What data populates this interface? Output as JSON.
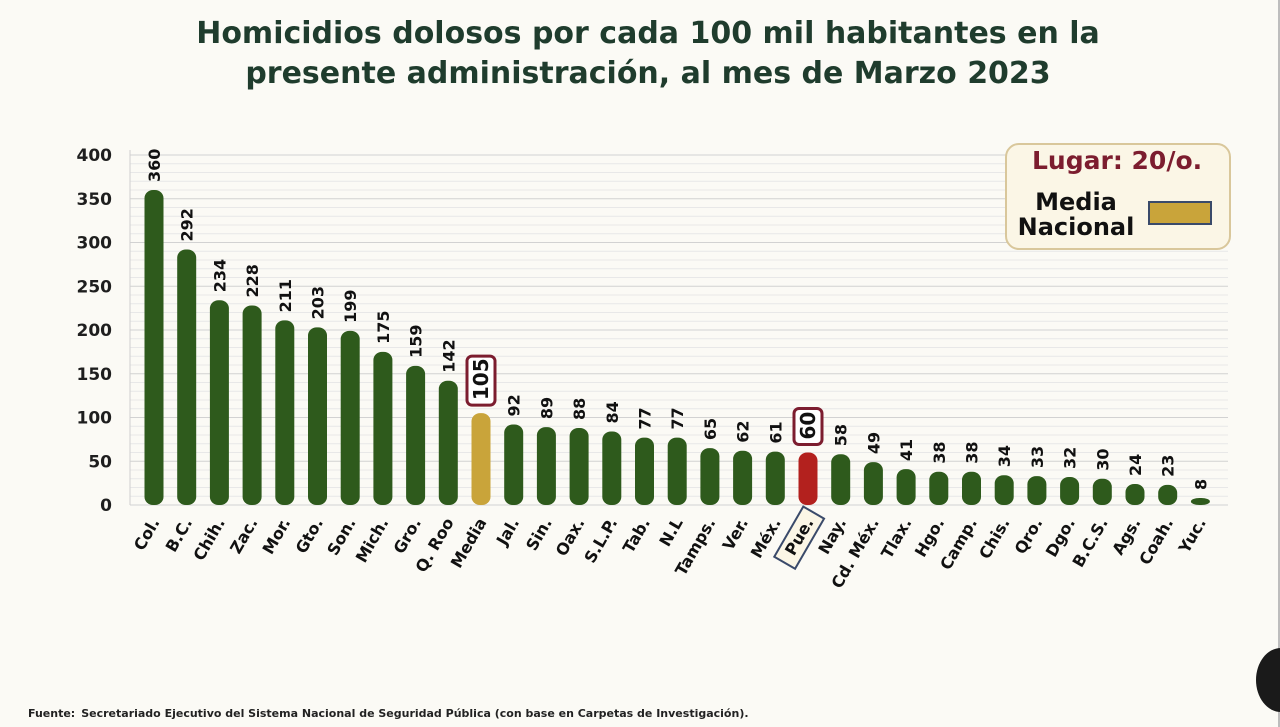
{
  "title": {
    "line1": "Homicidios dolosos por cada 100 mil habitantes en la",
    "line2": "presente administración, al mes de Marzo 2023"
  },
  "legend": {
    "lugar": "Lugar: 20/o.",
    "media_line1": "Media",
    "media_line2": "Nacional",
    "media_color": "#c9a43a"
  },
  "footer": {
    "label": "Fuente:",
    "text": "Secretariado Ejecutivo del Sistema Nacional de Seguridad Pública (con base en Carpetas de Investigación)."
  },
  "colors": {
    "bar": "#2e5a1c",
    "media": "#c9a43a",
    "highlight": "#b3211e",
    "label_box": "#7c1d2f"
  },
  "chart_data": {
    "type": "bar",
    "categories": [
      "Col.",
      "B.C.",
      "Chih.",
      "Zac.",
      "Mor.",
      "Gto.",
      "Son.",
      "Mich.",
      "Gro.",
      "Q. Roo",
      "Media",
      "Jal.",
      "Sin.",
      "Oax.",
      "S.L.P.",
      "Tab.",
      "N.L",
      "Tamps.",
      "Ver.",
      "Méx.",
      "Pue.",
      "Nay.",
      "Cd. Méx.",
      "Tlax.",
      "Hgo.",
      "Camp.",
      "Chis.",
      "Qro.",
      "Dgo.",
      "B.C.S.",
      "Ags.",
      "Coah.",
      "Yuc."
    ],
    "values": [
      360,
      292,
      234,
      228,
      211,
      203,
      199,
      175,
      159,
      142,
      105,
      92,
      89,
      88,
      84,
      77,
      77,
      65,
      62,
      61,
      60,
      58,
      49,
      41,
      38,
      38,
      34,
      33,
      32,
      30,
      24,
      23,
      8
    ],
    "highlight": {
      "Media": "media",
      "Pue.": "highlight"
    },
    "yticks": [
      0,
      50,
      100,
      150,
      200,
      250,
      300,
      350,
      400
    ],
    "ylim": [
      0,
      400
    ],
    "grid": true,
    "legend_position": "top-right"
  }
}
